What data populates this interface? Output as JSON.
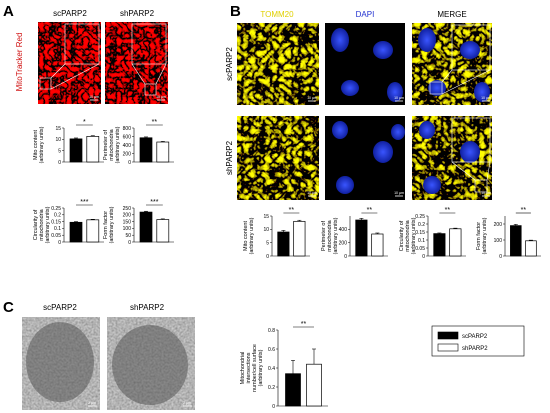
{
  "panels": {
    "A": {
      "label": "A",
      "columns": [
        "scPARP2",
        "shPARP2"
      ],
      "row_label": "MitoTracker Red",
      "scale_bar": "10 µm"
    },
    "B": {
      "label": "B",
      "columns": [
        "TOMM20",
        "DAPI",
        "MERGE"
      ],
      "rows": [
        "scPARP2",
        "shPARP2"
      ],
      "scale_bar": "10 µm"
    },
    "C": {
      "label": "C",
      "columns": [
        "scPARP2",
        "shPARP2"
      ],
      "scale_bar": "2 µm"
    }
  },
  "legend": [
    {
      "name": "scPARP2",
      "color": "#000000"
    },
    {
      "name": "shPARP2",
      "color": "#ffffff"
    }
  ],
  "chart_data": [
    {
      "type": "bar",
      "ylabel": [
        "Mito content",
        "(arbitrary units)"
      ],
      "ylim": [
        0,
        15
      ],
      "yticks": [
        0,
        5,
        10,
        15
      ],
      "values": [
        10.2,
        11.3
      ],
      "errors": [
        0.4,
        0.3
      ],
      "significance": "*"
    },
    {
      "type": "bar",
      "ylabel": [
        "Perimeter of",
        "mitochondria",
        "(arbitrary units)"
      ],
      "ylim": [
        0,
        800
      ],
      "yticks": [
        0,
        200,
        400,
        600,
        800
      ],
      "values": [
        570,
        470
      ],
      "errors": [
        20,
        15
      ],
      "significance": "**"
    },
    {
      "type": "bar",
      "ylabel": [
        "Circularity of",
        "mitochondria",
        "(arbitrary units)"
      ],
      "ylim": [
        0,
        0.25
      ],
      "yticks": [
        0,
        0.05,
        0.1,
        0.15,
        0.2,
        0.25
      ],
      "values": [
        0.145,
        0.163
      ],
      "errors": [
        0.005,
        0.004
      ],
      "significance": "***"
    },
    {
      "type": "bar",
      "ylabel": [
        "Form factor",
        "(arbitrary units)"
      ],
      "ylim": [
        0,
        250
      ],
      "yticks": [
        0,
        50,
        100,
        150,
        200,
        250
      ],
      "values": [
        220,
        165
      ],
      "errors": [
        6,
        5
      ],
      "significance": "***"
    },
    {
      "type": "bar",
      "ylabel": [
        "Mito content",
        "(arbitrary units)"
      ],
      "ylim": [
        0,
        15
      ],
      "yticks": [
        0,
        5,
        10,
        15
      ],
      "values": [
        9,
        13
      ],
      "errors": [
        0.6,
        0.4
      ],
      "significance": "**"
    },
    {
      "type": "bar",
      "ylabel": [
        "Perimeter of",
        "mitochondria",
        "(arbitrary units)"
      ],
      "ylim": [
        0,
        600
      ],
      "yticks": [
        0,
        200,
        400
      ],
      "values": [
        540,
        330
      ],
      "errors": [
        25,
        15
      ],
      "significance": "**"
    },
    {
      "type": "bar",
      "ylabel": [
        "Circularity of",
        "mitochondria",
        "(arbitrary units)"
      ],
      "ylim": [
        0,
        0.25
      ],
      "yticks": [
        0,
        0.05,
        0.1,
        0.15,
        0.2,
        0.25
      ],
      "values": [
        0.14,
        0.17
      ],
      "errors": [
        0.004,
        0.004
      ],
      "significance": "**"
    },
    {
      "type": "bar",
      "ylabel": [
        "Form factor",
        "(arbitrary units)"
      ],
      "ylim": [
        0,
        250
      ],
      "yticks": [
        0,
        100,
        200
      ],
      "values": [
        190,
        95
      ],
      "errors": [
        8,
        4
      ],
      "significance": "**"
    },
    {
      "type": "bar",
      "ylabel": [
        "Mitochondrial",
        "intersections",
        "number/cell surface",
        "(arbitrary units)"
      ],
      "ylim": [
        0,
        0.8
      ],
      "yticks": [
        0,
        0.2,
        0.4,
        0.6,
        0.8
      ],
      "values": [
        0.34,
        0.44
      ],
      "errors": [
        0.14,
        0.16
      ],
      "significance": "**"
    }
  ]
}
